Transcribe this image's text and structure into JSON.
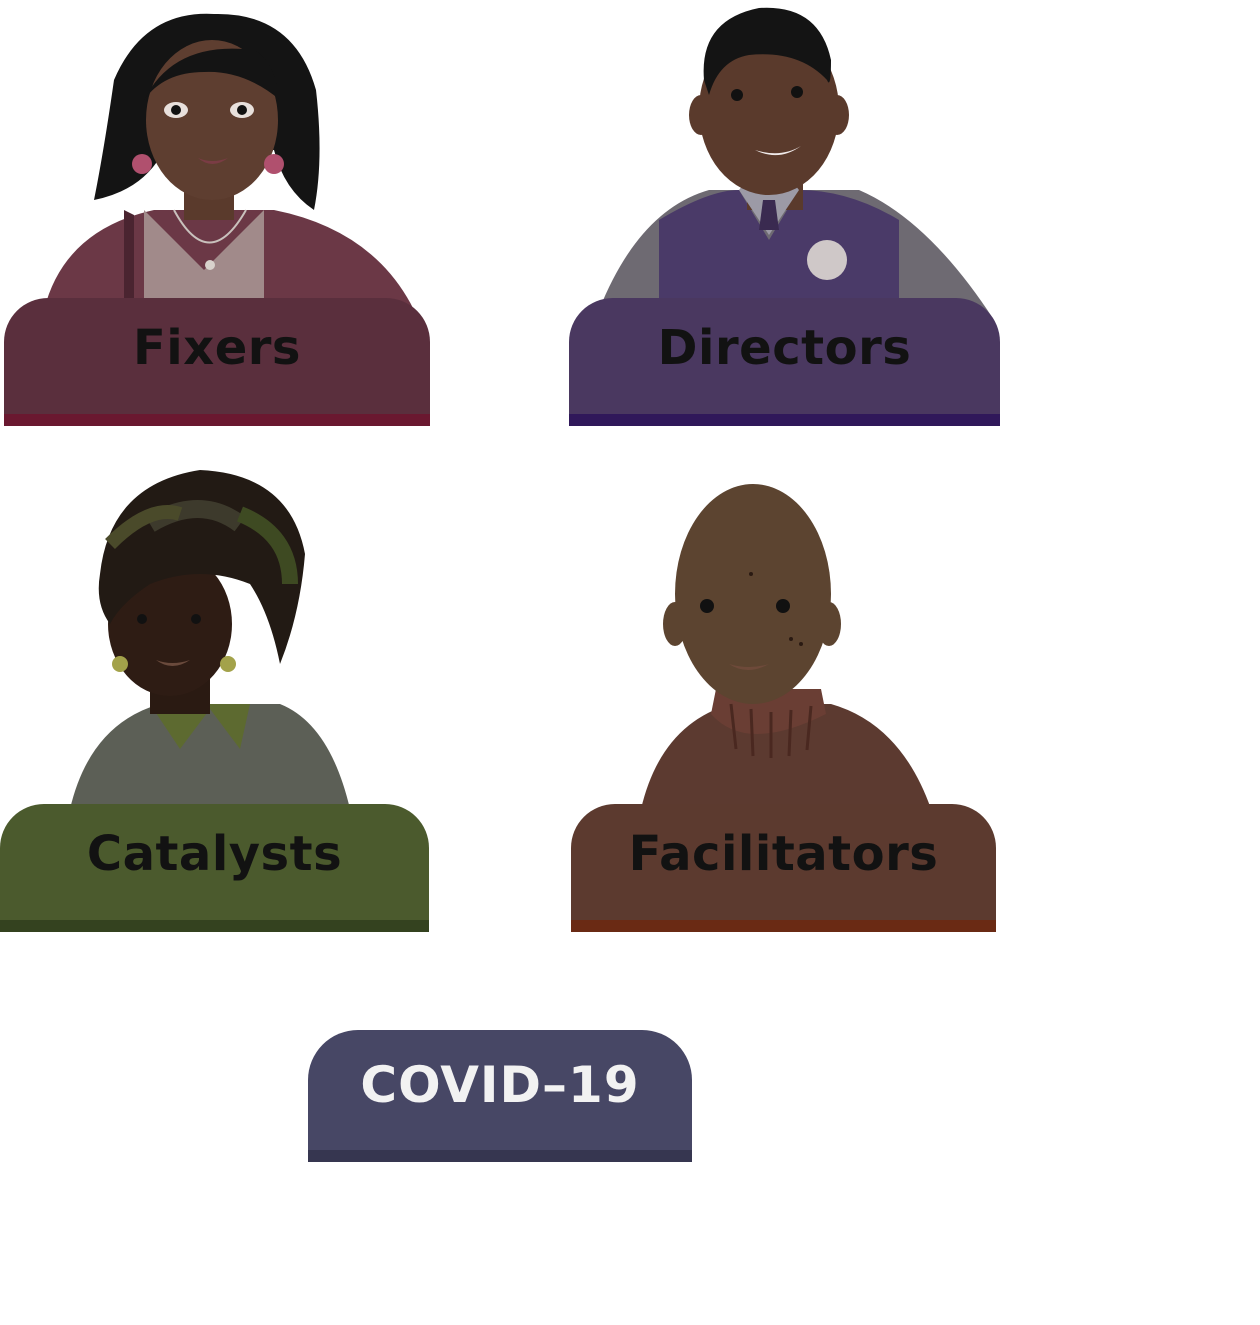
{
  "cards": [
    {
      "label": "Fixers",
      "color": "#5a2f3d",
      "bar_color": "#6a1830",
      "icon": "woman-with-bob-hair-icon"
    },
    {
      "label": "Directors",
      "color": "#4a3860",
      "bar_color": "#30185a",
      "icon": "man-with-sweater-vest-icon"
    },
    {
      "label": "Catalysts",
      "color": "#4b5a2d",
      "bar_color": "#34421f",
      "icon": "woman-with-locs-icon"
    },
    {
      "label": "Facilitators",
      "color": "#5c3a2f",
      "bar_color": "#6a2a14",
      "icon": "bald-man-with-turtleneck-icon"
    }
  ],
  "covid_button": {
    "label": "COVID–19",
    "color": "#474765"
  }
}
